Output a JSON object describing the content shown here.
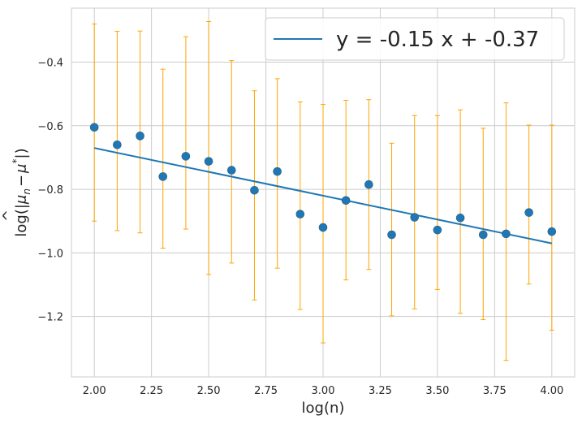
{
  "chart_data": {
    "type": "scatter",
    "xlabel": "log(n)",
    "ylabel_parts": {
      "pre": "log(|",
      "mu_n": "μ",
      "hat": "^",
      "sub_n": "n",
      "minus": "−",
      "mu_star": "μ",
      "star": "*",
      "post": "|)"
    },
    "xlim": [
      1.9,
      4.1
    ],
    "ylim": [
      -1.39,
      -0.23
    ],
    "x_ticks": [
      2.0,
      2.25,
      2.5,
      2.75,
      3.0,
      3.25,
      3.5,
      3.75,
      4.0
    ],
    "x_tick_labels": [
      "2.00",
      "2.25",
      "2.50",
      "2.75",
      "3.00",
      "3.25",
      "3.50",
      "3.75",
      "4.00"
    ],
    "y_ticks": [
      -1.2,
      -1.0,
      -0.8,
      -0.6,
      -0.4
    ],
    "y_tick_labels": [
      "−1.2",
      "−1.0",
      "−0.8",
      "−0.6",
      "−0.4"
    ],
    "grid": true,
    "legend_position": "top-right",
    "colors": {
      "points": "#1f77b4",
      "fit_line": "#1f77b4",
      "error_bars": "#ffa500",
      "grid": "#cccccc",
      "frame": "#cccccc"
    },
    "points": {
      "x": [
        2.0,
        2.1,
        2.2,
        2.3,
        2.4,
        2.5,
        2.6,
        2.7,
        2.8,
        2.9,
        3.0,
        3.1,
        3.2,
        3.3,
        3.4,
        3.5,
        3.6,
        3.7,
        3.8,
        3.9,
        4.0
      ],
      "y": [
        -0.605,
        -0.66,
        -0.632,
        -0.76,
        -0.696,
        -0.712,
        -0.74,
        -0.803,
        -0.744,
        -0.878,
        -0.92,
        -0.835,
        -0.785,
        -0.943,
        -0.888,
        -0.928,
        -0.89,
        -0.943,
        -0.94,
        -0.873,
        -0.933
      ],
      "err_low": [
        -0.9,
        -0.93,
        -0.937,
        -0.985,
        -0.925,
        -1.068,
        -1.032,
        -1.148,
        -1.048,
        -1.178,
        -1.283,
        -1.085,
        -1.052,
        -1.198,
        -1.176,
        -1.115,
        -1.19,
        -1.21,
        -1.338,
        -1.098,
        -1.243
      ],
      "err_high": [
        -0.28,
        -0.303,
        -0.302,
        -0.422,
        -0.32,
        -0.272,
        -0.395,
        -0.49,
        -0.452,
        -0.525,
        -0.533,
        -0.52,
        -0.518,
        -0.655,
        -0.568,
        -0.568,
        -0.55,
        -0.608,
        -0.528,
        -0.598,
        -0.598
      ]
    },
    "fit_line": {
      "label": "y = -0.15 x + -0.37",
      "x": [
        2.0,
        4.0
      ],
      "y": [
        -0.67,
        -0.97
      ]
    }
  }
}
